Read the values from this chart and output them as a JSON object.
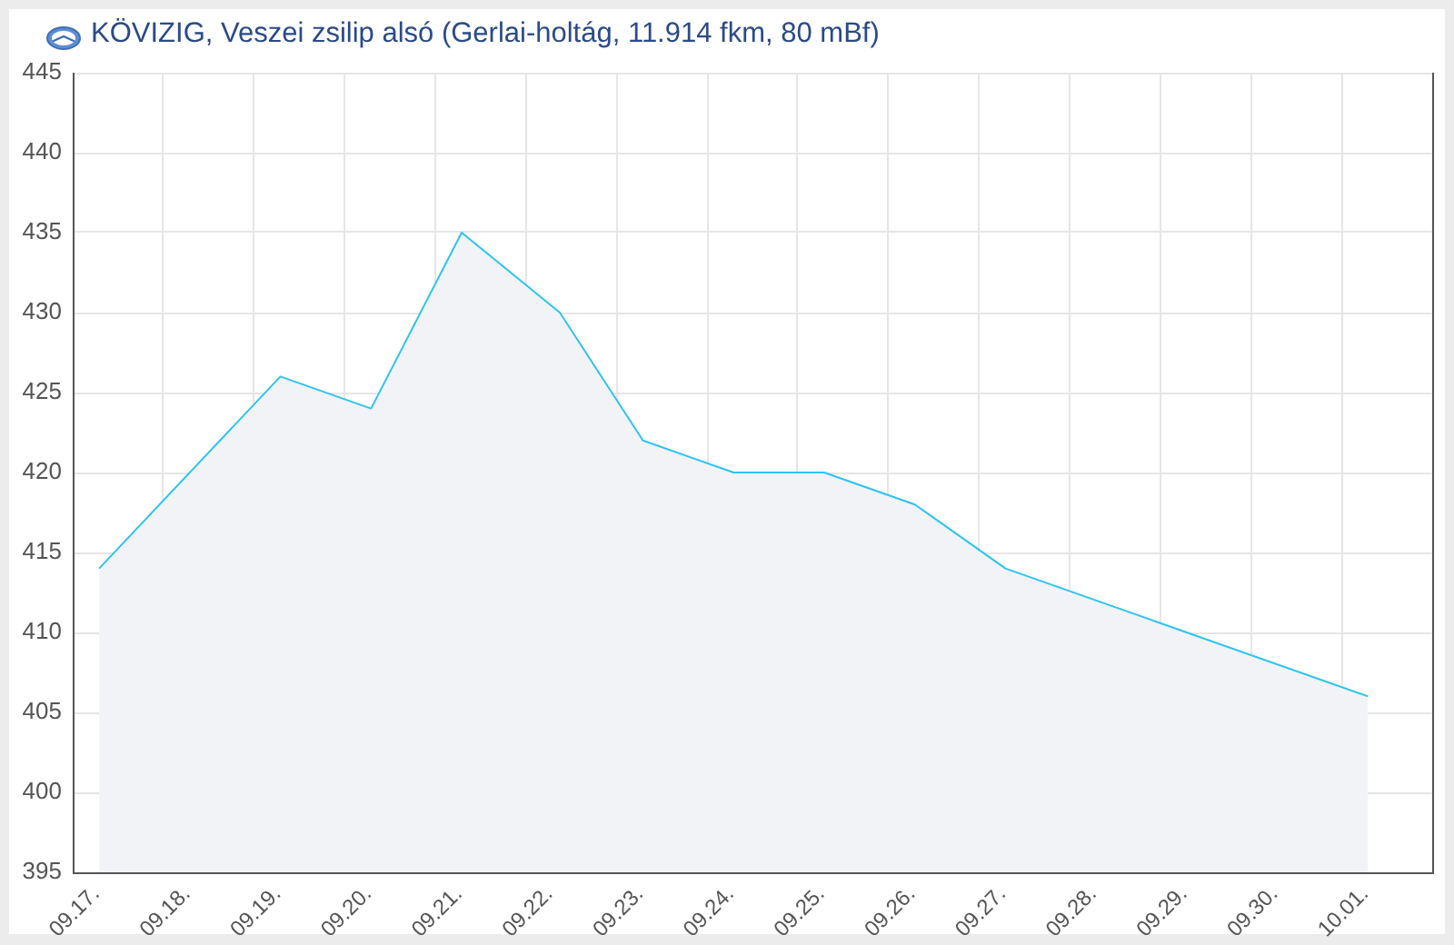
{
  "chart_data": {
    "type": "area",
    "title": "KÖVIZIG, Veszei zsilip alsó (Gerlai-holtág, 11.914 fkm, 80 mBf)",
    "x": [
      "--09-17T07:00",
      "--09-19T07:00",
      "--09-20T07:00",
      "--09-21T07:00",
      "--09-22T09:00",
      "--09-23T07:00",
      "--09-24T07:00",
      "--09-25T07:00",
      "--09-26T07:00",
      "--09-27T07:00",
      "--10-01T07:00"
    ],
    "values": [
      414,
      426,
      424,
      435,
      430,
      422,
      420,
      420,
      418,
      414,
      406
    ],
    "color": "#2bc4f2",
    "xlim": [
      "--09-17T00:00",
      "--10-02T00:00"
    ],
    "xticks": [
      {
        "value": "--09-17",
        "label": "09.17."
      },
      {
        "value": "--09-18",
        "label": "09.18."
      },
      {
        "value": "--09-19",
        "label": "09.19."
      },
      {
        "value": "--09-20",
        "label": "09.20."
      },
      {
        "value": "--09-21",
        "label": "09.21."
      },
      {
        "value": "--09-22",
        "label": "09.22."
      },
      {
        "value": "--09-23",
        "label": "09.23."
      },
      {
        "value": "--09-24",
        "label": "09.24."
      },
      {
        "value": "--09-25",
        "label": "09.25."
      },
      {
        "value": "--09-26",
        "label": "09.26."
      },
      {
        "value": "--09-27",
        "label": "09.27."
      },
      {
        "value": "--09-28",
        "label": "09.28."
      },
      {
        "value": "--09-29",
        "label": "09.29."
      },
      {
        "value": "--09-30",
        "label": "09.30."
      },
      {
        "value": "--10-01",
        "label": "10.01."
      }
    ],
    "ylim": [
      395,
      445
    ],
    "yticks": [
      395,
      400,
      405,
      410,
      415,
      420,
      425,
      430,
      435,
      440,
      445
    ],
    "grid": true,
    "marker": "none"
  }
}
